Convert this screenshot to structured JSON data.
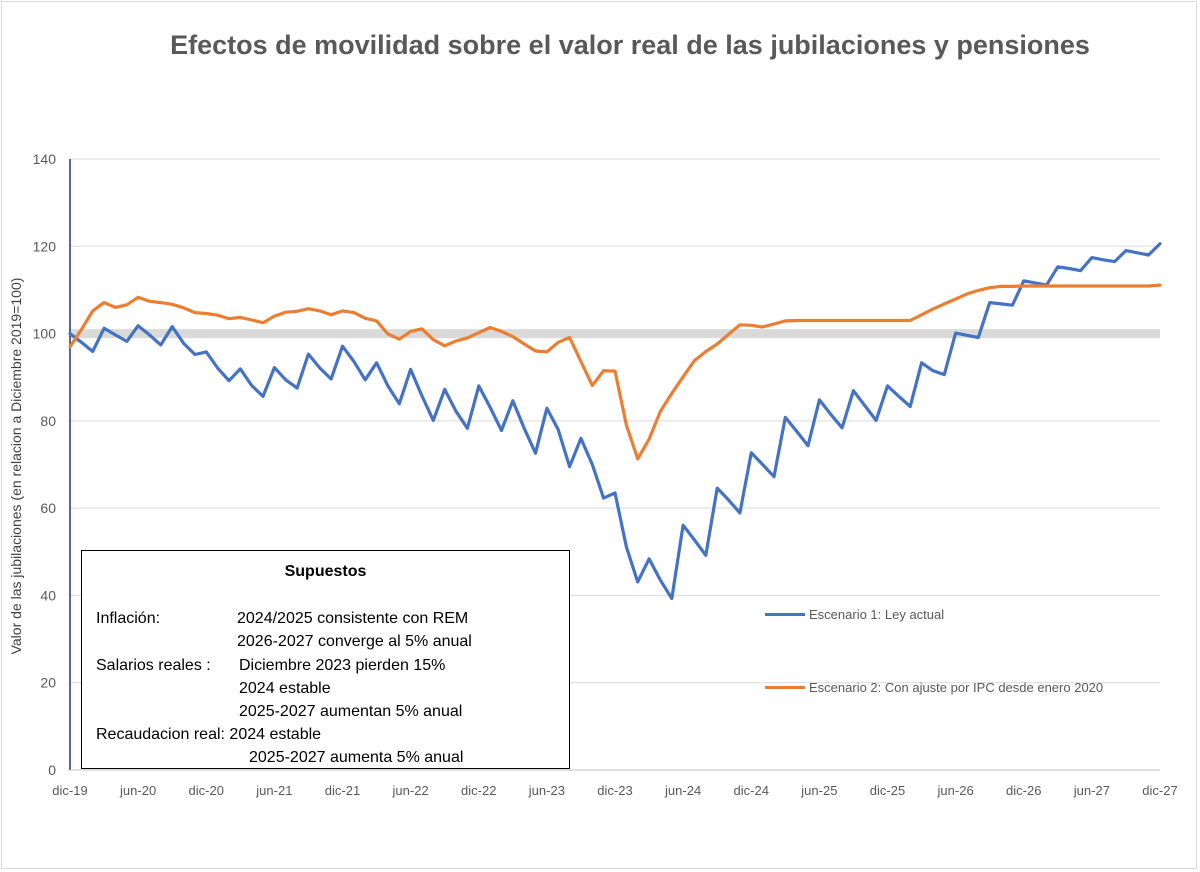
{
  "chart_data": {
    "type": "line",
    "title": "Efectos de movilidad sobre el valor real de las jubilaciones y pensiones",
    "ylabel": "Valor de las jubilaciones (en relacion a Diciembre 2019=100)",
    "xlabel": "",
    "ylim": [
      0,
      140
    ],
    "yticks": [
      0,
      20,
      40,
      60,
      80,
      100,
      120,
      140
    ],
    "x_start": "dic-19",
    "x_end": "dic-27",
    "x_tick_labels": [
      "dic-19",
      "jun-20",
      "dic-20",
      "jun-21",
      "dic-21",
      "jun-22",
      "dic-22",
      "jun-23",
      "dic-23",
      "jun-24",
      "dic-24",
      "jun-25",
      "dic-25",
      "jun-26",
      "dic-26",
      "jun-27",
      "dic-27"
    ],
    "grid": true,
    "reference_line": {
      "value": 100,
      "color": "#d9d9d9"
    },
    "legend_position": "right",
    "series": [
      {
        "name": "Escenario 1: Ley actual",
        "color": "#4472c4",
        "values": [
          100,
          98,
          95.9,
          101.2,
          99.7,
          98.2,
          101.8,
          99.7,
          97.4,
          101.6,
          97.8,
          95.2,
          95.8,
          92.1,
          89.2,
          91.9,
          88.1,
          85.6,
          92.2,
          89.4,
          87.5,
          95.3,
          92.1,
          89.6,
          97.1,
          93.6,
          89.4,
          93.3,
          88,
          83.9,
          91.8,
          85.7,
          80.1,
          87.2,
          82.2,
          78.3,
          88,
          83.1,
          77.8,
          84.6,
          78.3,
          72.6,
          82.9,
          78,
          69.5,
          76,
          70,
          62.3,
          63.5,
          51.1,
          43.1,
          48.4,
          43.5,
          39.3,
          56.1,
          52.7,
          49.2,
          64.6,
          61.9,
          58.9,
          72.7,
          70,
          67.2,
          80.8,
          77.6,
          74.3,
          84.8,
          81.5,
          78.4,
          86.9,
          83.5,
          80.1,
          88,
          85.6,
          83.3,
          93.3,
          91.5,
          90.6,
          100.1,
          99.6,
          99.1,
          107.1,
          106.8,
          106.5,
          112.1,
          111.6,
          111.1,
          115.3,
          114.9,
          114.4,
          117.4,
          116.9,
          116.5,
          119,
          118.5,
          118,
          120.6
        ]
      },
      {
        "name": "Escenario 2: Con ajuste por IPC desde enero 2020",
        "color": "#ed7d31",
        "values": [
          97,
          100.9,
          105.2,
          107.1,
          106,
          106.6,
          108.3,
          107.4,
          107.1,
          106.7,
          105.9,
          104.8,
          104.6,
          104.2,
          103.4,
          103.7,
          103.1,
          102.5,
          104,
          104.9,
          105.1,
          105.7,
          105.2,
          104.3,
          105.2,
          104.8,
          103.5,
          102.9,
          99.9,
          98.7,
          100.5,
          101.1,
          98.6,
          97.2,
          98.3,
          99,
          100.2,
          101.4,
          100.5,
          99.3,
          97.6,
          96,
          95.8,
          98,
          99.1,
          93.6,
          88.1,
          91.5,
          91.4,
          79,
          71.3,
          75.8,
          82.2,
          86.3,
          90.1,
          93.8,
          95.9,
          97.6,
          99.8,
          102,
          101.9,
          101.5,
          102.2,
          102.9,
          103,
          103,
          103,
          103,
          103,
          103,
          103,
          103,
          103,
          103,
          103,
          104.3,
          105.6,
          106.8,
          107.9,
          109.1,
          109.9,
          110.5,
          110.8,
          110.8,
          110.9,
          110.9,
          110.9,
          110.9,
          110.9,
          110.9,
          110.9,
          110.9,
          110.9,
          110.9,
          110.9,
          110.9,
          111.1
        ]
      }
    ]
  },
  "supuestos": {
    "title": "Supuestos",
    "lines": [
      "Inflación:",
      "2024/2025 consistente con REM",
      "2026-2027 converge al 5% anual",
      "Salarios reales :",
      "Diciembre  2023 pierden 15%",
      "2024 estable",
      "2025-2027 aumentan 5% anual",
      "Recaudacion real: 2024 estable",
      "2025-2027 aumenta  5% anual"
    ]
  }
}
